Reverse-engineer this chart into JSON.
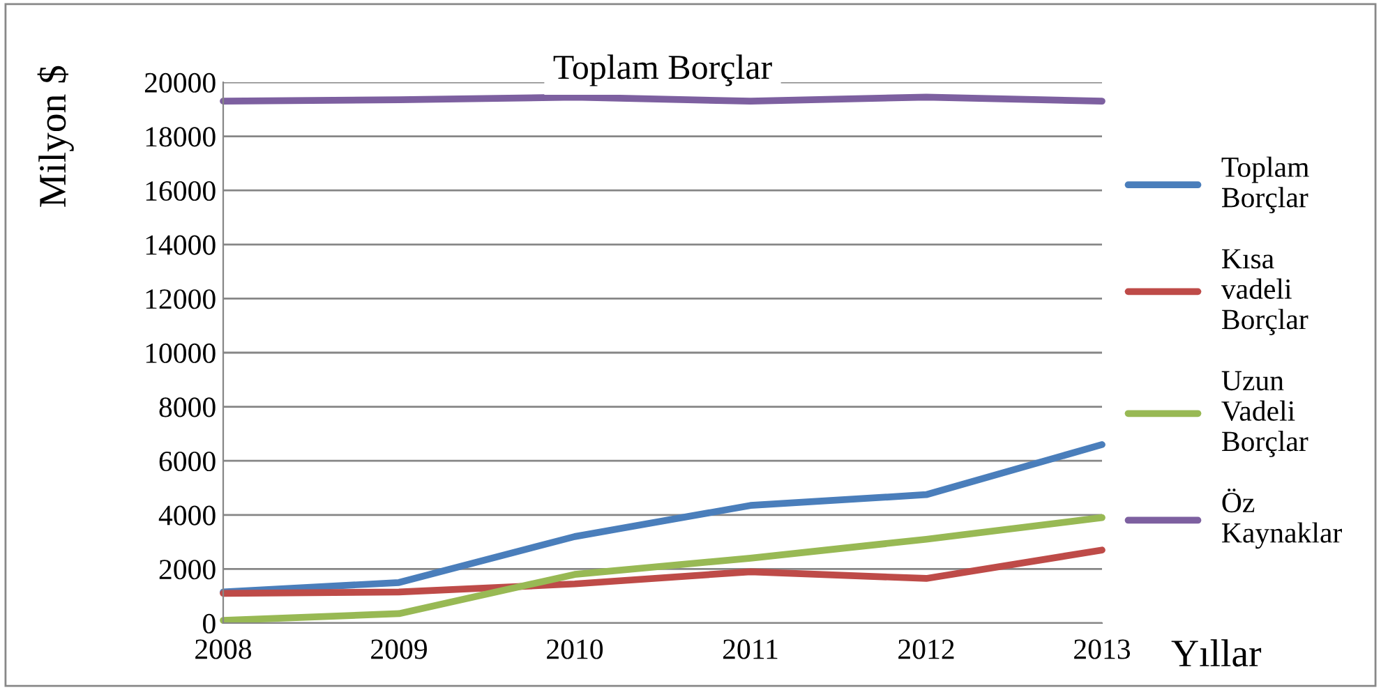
{
  "chart_data": {
    "type": "line",
    "title": "Toplam Borçlar",
    "xlabel": "Yıllar",
    "ylabel": "Milyon $",
    "x": [
      2008,
      2009,
      2010,
      2011,
      2012,
      2013
    ],
    "series": [
      {
        "name": "Toplam Borçlar",
        "color": "#4a7ebb",
        "values": [
          1150,
          1500,
          3200,
          4350,
          4750,
          6600
        ]
      },
      {
        "name": "Kısa vadeli Borçlar",
        "color": "#be4b48",
        "values": [
          1100,
          1150,
          1450,
          1900,
          1650,
          2700
        ]
      },
      {
        "name": "Uzun Vadeli Borçlar",
        "color": "#98b954",
        "values": [
          100,
          350,
          1800,
          2400,
          3100,
          3900
        ]
      },
      {
        "name": "Öz Kaynaklar",
        "color": "#7d60a0",
        "values": [
          19300,
          19350,
          19450,
          19300,
          19450,
          19300
        ]
      }
    ],
    "xlim": [
      2008,
      2013
    ],
    "xticks": [
      2008,
      2009,
      2010,
      2011,
      2012,
      2013
    ],
    "ylim": [
      0,
      20000
    ],
    "yticks": [
      0,
      2000,
      4000,
      6000,
      8000,
      10000,
      12000,
      14000,
      16000,
      18000,
      20000
    ],
    "grid": "y",
    "legend": "right",
    "marker": "none",
    "line_style": "solid"
  }
}
